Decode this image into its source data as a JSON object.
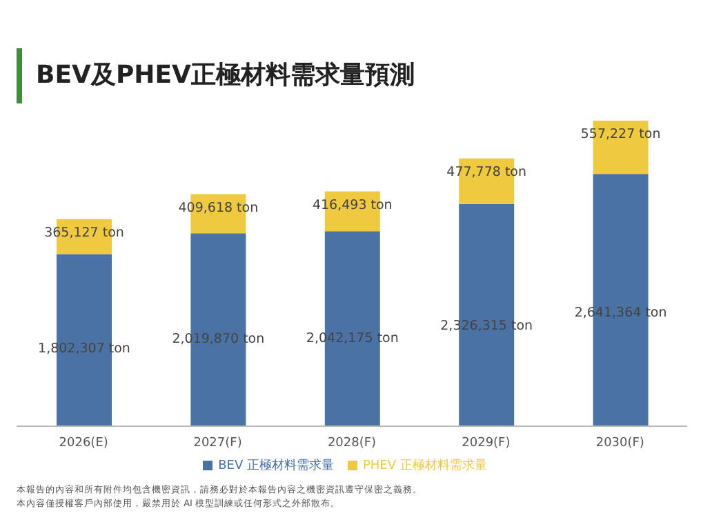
{
  "chart_data": {
    "type": "bar",
    "title": "BEV及PHEV正極材料需求量預測",
    "categories": [
      "2026(E)",
      "2027(F)",
      "2028(F)",
      "2029(F)",
      "2030(F)"
    ],
    "stacked": true,
    "legend": "bottom",
    "series": [
      {
        "name": "BEV 正極材料需求量",
        "color": "#4a72a4",
        "values": [
          1802307,
          2019870,
          2042175,
          2326315,
          2641364
        ],
        "value_labels": [
          "1,802,307 ton",
          "2,019,870 ton",
          "2,042,175 ton",
          "2,326,315 ton",
          "2,641,364 ton"
        ]
      },
      {
        "name": "PHEV 正極材料需求量",
        "color": "#efc93f",
        "values": [
          365127,
          409618,
          416493,
          477778,
          557227
        ],
        "value_labels": [
          "365,127 ton",
          "409,618 ton",
          "416,493 ton",
          "477,778 ton",
          "557,227 ton"
        ]
      }
    ],
    "annotations": [
      "本報告的內容和所有附件均包含機密資訊，請務必對於本報告內容之機密資訊遵守保密之義務。",
      "本內容僅授權客戶內部使用，嚴禁用於 AI 模型訓練或任何形式之外部散布。"
    ]
  }
}
